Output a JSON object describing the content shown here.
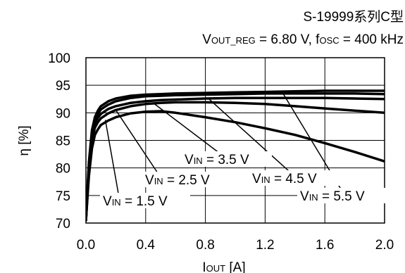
{
  "chart_data": {
    "type": "line",
    "title": "S-19999系列C型",
    "subtitle": {
      "v": "V",
      "v_sub": "OUT_REG",
      "v_rest": " = 6.80 V, f",
      "f_sub": "OSC",
      "f_rest": " = 400 kHz"
    },
    "xlabel": {
      "main": "I",
      "sub": "OUT",
      "rest": " [A]"
    },
    "ylabel": "η [%]",
    "xlim": [
      0.0,
      2.0
    ],
    "ylim": [
      70,
      100
    ],
    "xticks": [
      "0.0",
      "0.4",
      "0.8",
      "1.2",
      "1.6",
      "2.0"
    ],
    "yticks": [
      "70",
      "75",
      "80",
      "85",
      "90",
      "95",
      "100"
    ],
    "grid": true,
    "series": [
      {
        "name": "VIN = 1.5 V",
        "label": {
          "v": "V",
          "sub": "IN",
          "rest": " = 1.5 V"
        },
        "x": [
          0.0,
          0.02,
          0.04,
          0.06,
          0.08,
          0.1,
          0.15,
          0.2,
          0.3,
          0.4,
          0.5,
          0.6,
          0.8,
          1.0,
          1.2,
          1.4,
          1.6,
          1.8,
          2.0
        ],
        "y": [
          70.5,
          78.5,
          83.5,
          86.0,
          87.0,
          87.8,
          88.6,
          89.2,
          89.9,
          90.2,
          90.3,
          90.0,
          89.2,
          88.3,
          87.2,
          86.0,
          84.5,
          82.9,
          81.2
        ]
      },
      {
        "name": "VIN = 2.5 V",
        "label": {
          "v": "V",
          "sub": "IN",
          "rest": " = 2.5 V"
        },
        "x": [
          0.0,
          0.02,
          0.04,
          0.06,
          0.08,
          0.1,
          0.15,
          0.2,
          0.3,
          0.4,
          0.5,
          0.6,
          0.8,
          1.0,
          1.2,
          1.4,
          1.6,
          1.8,
          2.0
        ],
        "y": [
          70.5,
          79.5,
          85.0,
          87.3,
          88.3,
          89.0,
          89.9,
          90.5,
          91.2,
          91.6,
          91.8,
          91.9,
          91.9,
          91.8,
          91.6,
          91.2,
          90.8,
          90.4,
          90.0
        ]
      },
      {
        "name": "VIN = 3.5 V",
        "label": {
          "v": "V",
          "sub": "IN",
          "rest": " = 3.5 V"
        },
        "x": [
          0.0,
          0.02,
          0.04,
          0.06,
          0.08,
          0.1,
          0.15,
          0.2,
          0.3,
          0.4,
          0.5,
          0.6,
          0.8,
          1.0,
          1.2,
          1.4,
          1.6,
          1.8,
          2.0
        ],
        "y": [
          70.5,
          80.0,
          85.8,
          88.0,
          89.1,
          89.8,
          90.7,
          91.2,
          91.8,
          92.1,
          92.3,
          92.4,
          92.6,
          92.7,
          92.7,
          92.7,
          92.7,
          92.6,
          92.5
        ]
      },
      {
        "name": "VIN = 4.5 V",
        "label": {
          "v": "V",
          "sub": "IN",
          "rest": " = 4.5 V"
        },
        "x": [
          0.0,
          0.02,
          0.04,
          0.06,
          0.08,
          0.1,
          0.15,
          0.2,
          0.3,
          0.4,
          0.5,
          0.6,
          0.8,
          1.0,
          1.2,
          1.4,
          1.6,
          1.8,
          2.0
        ],
        "y": [
          70.5,
          80.5,
          86.3,
          88.6,
          89.8,
          90.6,
          91.5,
          92.1,
          92.7,
          93.0,
          93.1,
          93.2,
          93.3,
          93.4,
          93.5,
          93.5,
          93.5,
          93.5,
          93.4
        ]
      },
      {
        "name": "VIN = 5.5 V",
        "label": {
          "v": "V",
          "sub": "IN",
          "rest": " = 5.5 V"
        },
        "x": [
          0.0,
          0.02,
          0.04,
          0.06,
          0.08,
          0.1,
          0.15,
          0.2,
          0.3,
          0.4,
          0.5,
          0.6,
          0.8,
          1.0,
          1.2,
          1.4,
          1.6,
          1.8,
          2.0
        ],
        "y": [
          70.5,
          81.0,
          86.8,
          89.2,
          90.4,
          91.2,
          92.1,
          92.6,
          93.1,
          93.3,
          93.4,
          93.5,
          93.6,
          93.7,
          93.8,
          93.9,
          94.0,
          94.0,
          94.0
        ]
      }
    ]
  }
}
